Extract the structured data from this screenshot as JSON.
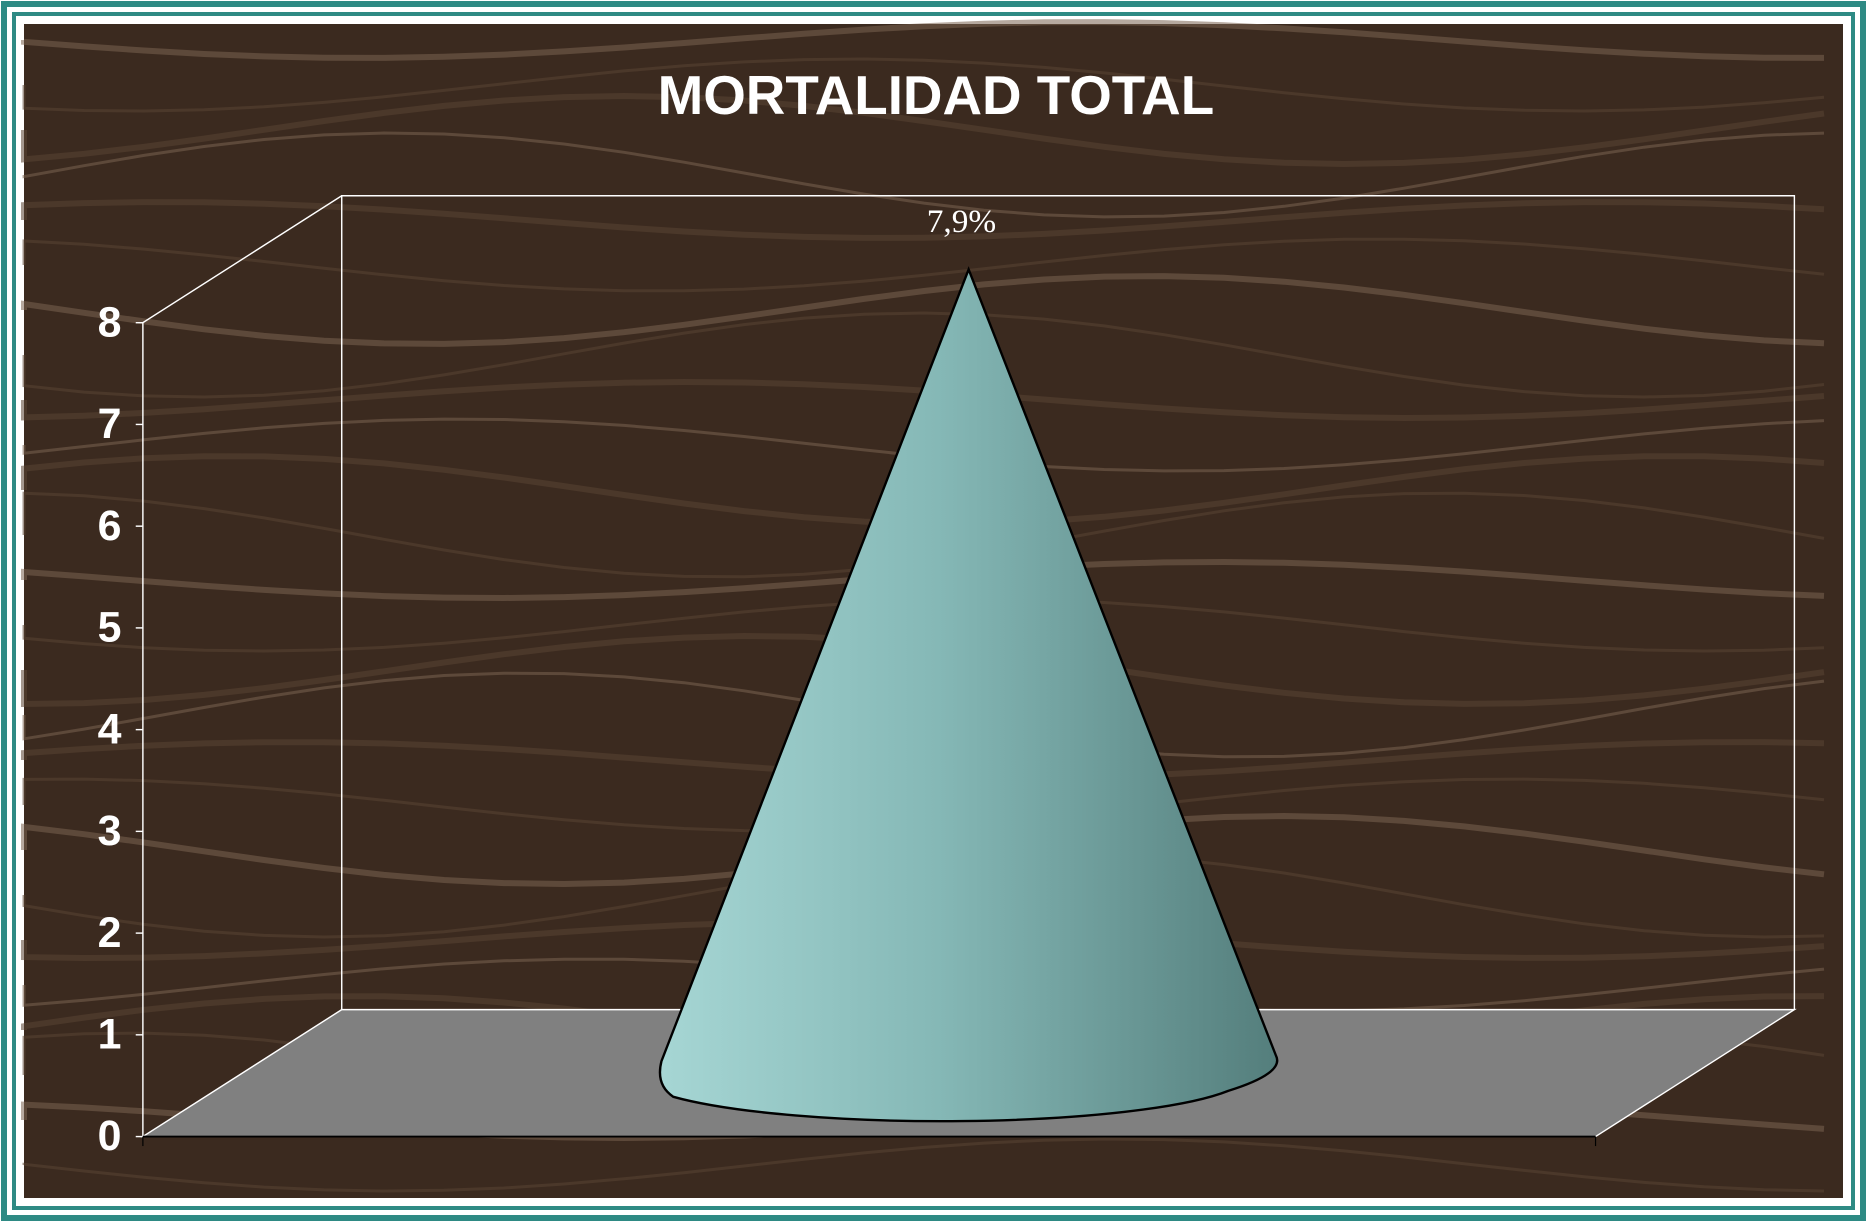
{
  "chart_data": {
    "type": "bar",
    "title": "MORTALIDAD TOTAL",
    "categories": [
      null
    ],
    "values": [
      7.9
    ],
    "value_labels": [
      "7,9%"
    ],
    "color": "#8fc4c2",
    "ylim": [
      0,
      8
    ],
    "yticks": [
      0,
      1,
      2,
      3,
      4,
      5,
      6,
      7,
      8
    ],
    "grid": false
  }
}
